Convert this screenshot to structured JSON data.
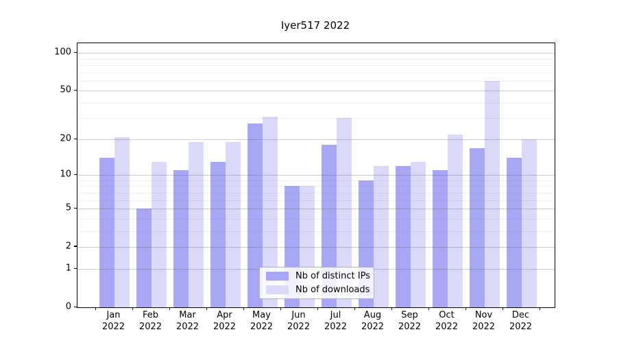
{
  "title": "Iyer517 2022",
  "colors": {
    "ips_bar": "#a7a7f6",
    "downloads_bar": "#dadaf8",
    "frame": "#000000",
    "major_grid": "#d4d4d4",
    "minor_grid": "#ececec"
  },
  "legend": {
    "items": [
      {
        "label": "Nb of distinct IPs",
        "color_key": "ips_bar"
      },
      {
        "label": "Nb of downloads",
        "color_key": "downloads_bar"
      }
    ]
  },
  "y_axis": {
    "tick_labels": [
      "100",
      "50",
      "20",
      "10",
      "5",
      "2",
      "1",
      "0"
    ]
  },
  "chart_data": {
    "type": "bar",
    "title": "Iyer517 2022",
    "categories": [
      "Jan 2022",
      "Feb 2022",
      "Mar 2022",
      "Apr 2022",
      "May 2022",
      "Jun 2022",
      "Jul 2022",
      "Aug 2022",
      "Sep 2022",
      "Oct 2022",
      "Nov 2022",
      "Dec 2022"
    ],
    "series": [
      {
        "name": "Nb of distinct IPs",
        "values": [
          14,
          5,
          11,
          13,
          27,
          8,
          18,
          9,
          12,
          11,
          17,
          14
        ]
      },
      {
        "name": "Nb of downloads",
        "values": [
          21,
          13,
          19,
          19,
          31,
          8,
          30,
          12,
          13,
          22,
          60,
          20
        ]
      }
    ],
    "yscale": "log1p",
    "ylim": [
      0,
      120
    ],
    "major_yticks": [
      100,
      50,
      20,
      10,
      5,
      2,
      1,
      0
    ],
    "minor_yticks": [
      3,
      4,
      6,
      7,
      8,
      9,
      30,
      40,
      60,
      70,
      80,
      90
    ],
    "grid": "horizontal",
    "legend_position": "lower-center-inside"
  }
}
